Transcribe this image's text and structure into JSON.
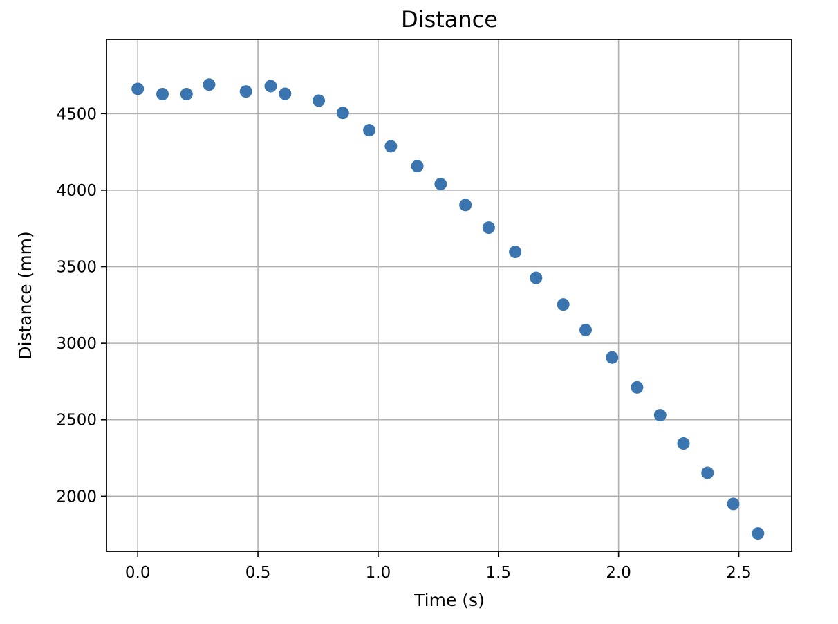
{
  "chart_data": {
    "type": "scatter",
    "title": "Distance",
    "xlabel": "Time (s)",
    "ylabel": "Distance (mm)",
    "xlim": [
      -0.13,
      2.72
    ],
    "ylim": [
      1640,
      4985
    ],
    "xticks": [
      0.0,
      0.5,
      1.0,
      1.5,
      2.0,
      2.5
    ],
    "xtick_labels": [
      "0.0",
      "0.5",
      "1.0",
      "1.5",
      "2.0",
      "2.5"
    ],
    "yticks": [
      2000,
      2500,
      3000,
      3500,
      4000,
      4500
    ],
    "ytick_labels": [
      "2000",
      "2500",
      "3000",
      "3500",
      "4000",
      "4500"
    ],
    "grid": true,
    "legend": "none",
    "marker_color": "#3a75b0",
    "series": [
      {
        "x": [
          0.0,
          0.103,
          0.203,
          0.297,
          0.45,
          0.553,
          0.613,
          0.753,
          0.853,
          0.963,
          1.053,
          1.163,
          1.26,
          1.363,
          1.46,
          1.57,
          1.657,
          1.77,
          1.863,
          1.973,
          2.077,
          2.173,
          2.27,
          2.37,
          2.477,
          2.58
        ],
        "y": [
          4662,
          4628,
          4628,
          4690,
          4645,
          4680,
          4630,
          4585,
          4505,
          4392,
          4287,
          4157,
          4040,
          3903,
          3755,
          3597,
          3427,
          3253,
          3087,
          2907,
          2712,
          2530,
          2345,
          2153,
          1950,
          1757
        ]
      }
    ]
  }
}
